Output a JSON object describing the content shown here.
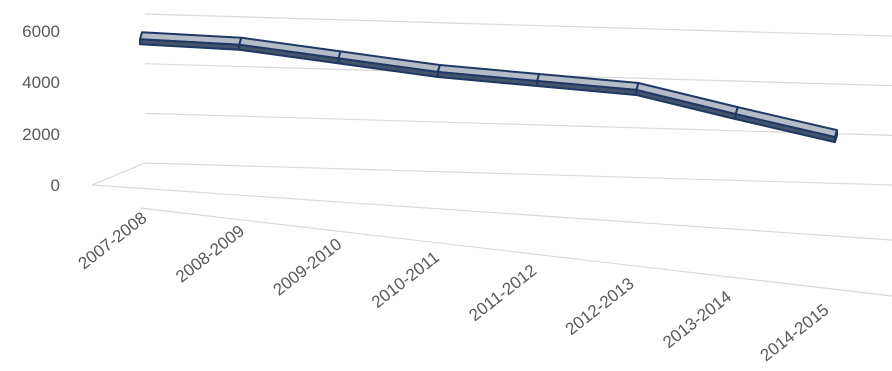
{
  "chart_data": {
    "type": "line",
    "style": "3d-ribbon",
    "title": "",
    "xlabel": "",
    "ylabel": "",
    "categories": [
      "2007-2008",
      "2008-2009",
      "2009-2010",
      "2010-2011",
      "2011-2012",
      "2012-2013",
      "2013-2014",
      "2014-2015"
    ],
    "series": [
      {
        "values": [
          5500,
          5450,
          5050,
          4650,
          4450,
          4250,
          3400,
          2600
        ]
      }
    ],
    "ylim": [
      0,
      6000
    ],
    "y_ticks": [
      "0",
      "2000",
      "4000",
      "6000"
    ],
    "grid": true,
    "legend": "none",
    "colors": {
      "ribbon_top": "#b4bcc8",
      "ribbon_front": "#44546a",
      "ribbon_outline": "#1f3864",
      "gridline": "#d9d9d9",
      "label": "#595959"
    }
  }
}
